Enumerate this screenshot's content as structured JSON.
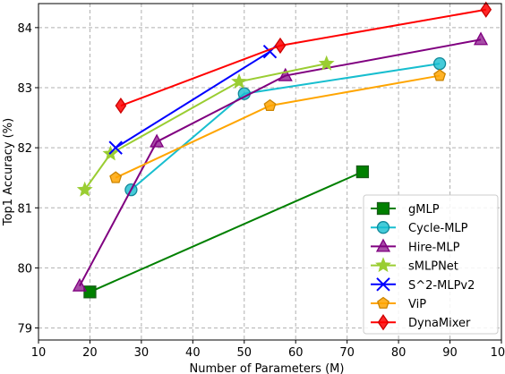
{
  "chart_data": {
    "type": "line",
    "title": "",
    "xlabel": "Number of Parameters (M)",
    "ylabel": "Top1 Accuracy (%)",
    "xlim": [
      10,
      100
    ],
    "ylim": [
      78.8,
      84.4
    ],
    "xticks": [
      10,
      20,
      30,
      40,
      50,
      60,
      70,
      80,
      90,
      100
    ],
    "yticks": [
      79,
      80,
      81,
      82,
      83,
      84
    ],
    "grid": true,
    "legend_position": "lower-right",
    "series": [
      {
        "name": "gMLP",
        "color": "#008000",
        "marker": "square",
        "x": [
          20,
          73
        ],
        "y": [
          79.6,
          81.6
        ]
      },
      {
        "name": "Cycle-MLP",
        "color": "#17becf",
        "marker": "circle",
        "x": [
          28,
          50,
          88
        ],
        "y": [
          81.3,
          82.9,
          83.4
        ]
      },
      {
        "name": "Hire-MLP",
        "color": "#800080",
        "marker": "triangle",
        "x": [
          18,
          33,
          58,
          96
        ],
        "y": [
          79.7,
          82.1,
          83.2,
          83.8
        ]
      },
      {
        "name": "sMLPNet",
        "color": "#9acd32",
        "marker": "star",
        "x": [
          19,
          24,
          49,
          66
        ],
        "y": [
          81.3,
          81.9,
          83.1,
          83.4
        ]
      },
      {
        "name": "S^2-MLPv2",
        "color": "#0000ff",
        "marker": "x",
        "x": [
          25,
          55
        ],
        "y": [
          82.0,
          83.6
        ]
      },
      {
        "name": "ViP",
        "color": "#ffa500",
        "marker": "pentagon",
        "x": [
          25,
          55,
          88
        ],
        "y": [
          81.5,
          82.7,
          83.2
        ]
      },
      {
        "name": "DynaMixer",
        "color": "#ff0000",
        "marker": "diamond",
        "x": [
          26,
          57,
          97
        ],
        "y": [
          82.7,
          83.7,
          84.3
        ]
      }
    ]
  }
}
